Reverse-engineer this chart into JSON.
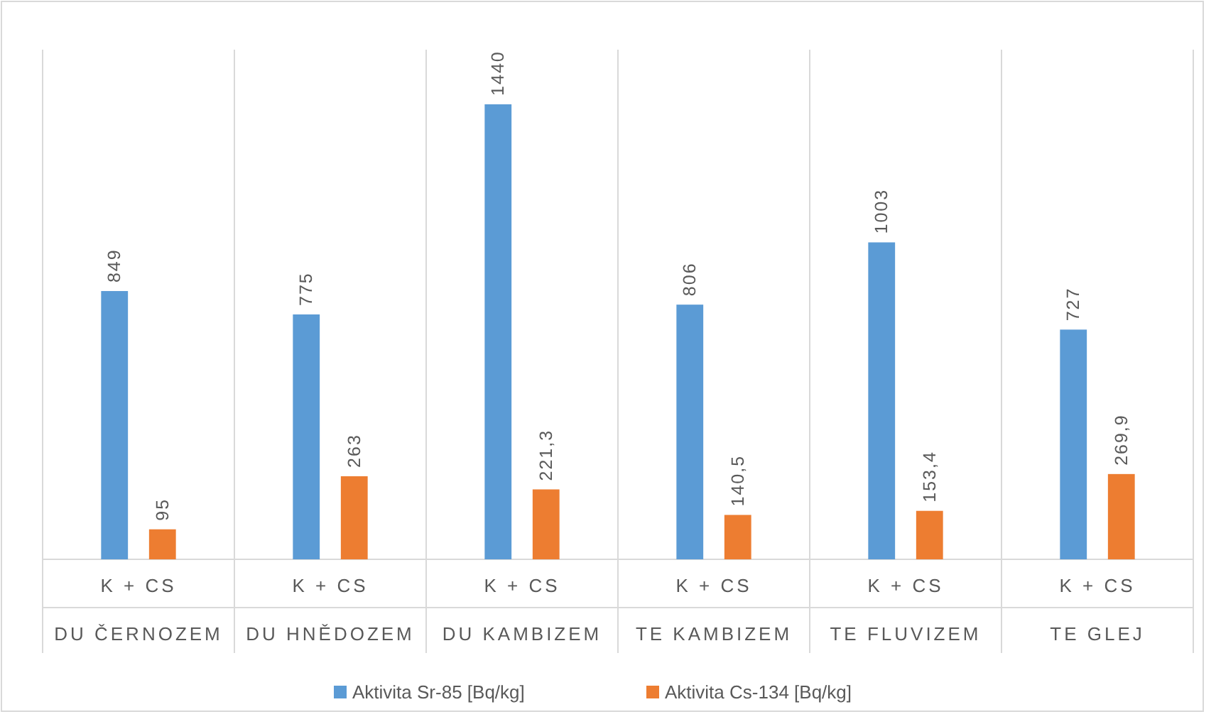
{
  "chart_data": {
    "type": "bar",
    "categories": [
      "K + CS\nDU ČERNOZEM",
      "K + CS\nDU HNĚDOZEM",
      "K + CS\nDU KAMBIZEM",
      "K + CS\nTE KAMBIZEM",
      "K + CS\nTE FLUVIZEM",
      "K + CS\nTE GLEJ"
    ],
    "series": [
      {
        "name": "Aktivita Sr-85 [Bq/kg]",
        "color": "#5b9bd5",
        "values": [
          849,
          775,
          1440,
          806,
          1003,
          727
        ],
        "value_labels": [
          "849",
          "775",
          "1440",
          "806",
          "1003",
          "727"
        ]
      },
      {
        "name": "Aktivita Cs-134 [Bq/kg]",
        "color": "#ed7d31",
        "values": [
          95,
          263,
          221.3,
          140.5,
          153.4,
          269.9
        ],
        "value_labels": [
          "95",
          "263",
          "221,3",
          "140,5",
          "153,4",
          "269,9"
        ]
      }
    ],
    "legend": "bottom"
  }
}
